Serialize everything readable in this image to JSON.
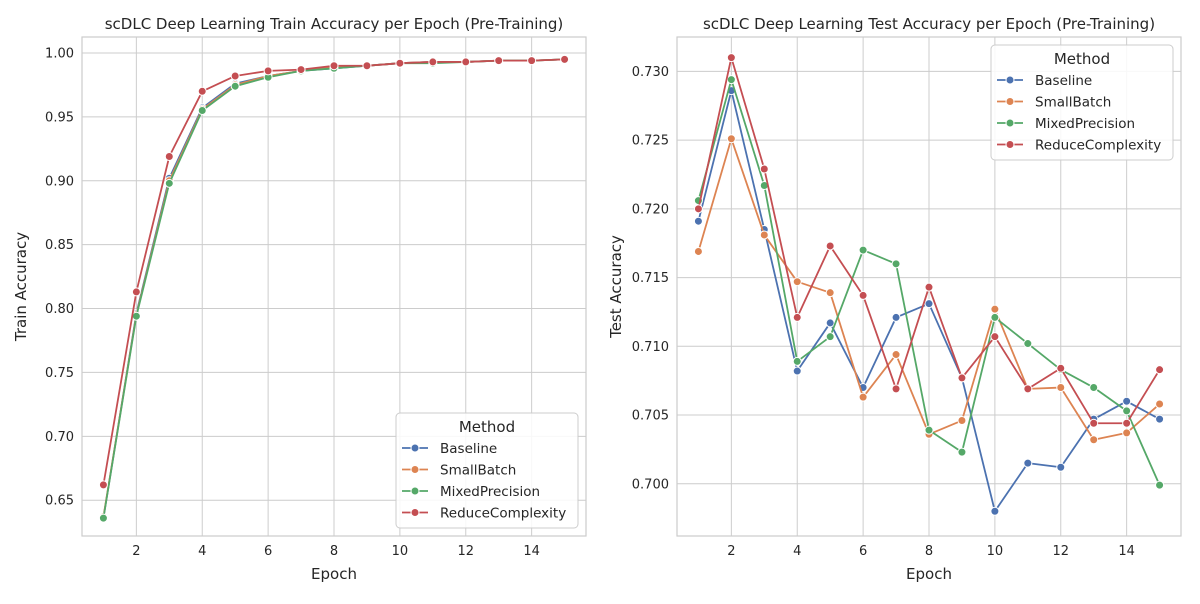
{
  "chart_data": [
    {
      "type": "line",
      "title": "scDLC Deep Learning Train Accuracy per Epoch (Pre-Training)",
      "xlabel": "Epoch",
      "ylabel": "Train Accuracy",
      "xlim": [
        0.35,
        15.65
      ],
      "ylim": [
        0.622,
        1.0125
      ],
      "xticks": [
        2,
        4,
        6,
        8,
        10,
        12,
        14
      ],
      "yticks": [
        0.65,
        0.7,
        0.75,
        0.8,
        0.85,
        0.9,
        0.95,
        1.0
      ],
      "ytick_decimals": 2,
      "grid": true,
      "legend": {
        "title": "Method",
        "position": "bottom-right"
      },
      "x": [
        1,
        2,
        3,
        4,
        5,
        6,
        7,
        8,
        9,
        10,
        11,
        12,
        13,
        14,
        15
      ],
      "series": [
        {
          "name": "Baseline",
          "color": "#4c72b0",
          "values": [
            0.636,
            0.796,
            0.902,
            0.957,
            0.976,
            0.982,
            0.986,
            0.988,
            0.99,
            0.992,
            0.993,
            0.993,
            0.994,
            0.994,
            0.995
          ]
        },
        {
          "name": "SmallBatch",
          "color": "#dd8452",
          "values": [
            0.637,
            0.795,
            0.9,
            0.956,
            0.975,
            0.982,
            0.986,
            0.989,
            0.99,
            0.992,
            0.993,
            0.993,
            0.994,
            0.994,
            0.995
          ]
        },
        {
          "name": "MixedPrecision",
          "color": "#55a868",
          "values": [
            0.636,
            0.794,
            0.898,
            0.955,
            0.974,
            0.981,
            0.986,
            0.988,
            0.99,
            0.992,
            0.992,
            0.993,
            0.994,
            0.994,
            0.995
          ]
        },
        {
          "name": "ReduceComplexity",
          "color": "#c44e52",
          "values": [
            0.662,
            0.813,
            0.919,
            0.97,
            0.982,
            0.986,
            0.987,
            0.99,
            0.99,
            0.992,
            0.993,
            0.993,
            0.994,
            0.994,
            0.995
          ]
        }
      ]
    },
    {
      "type": "line",
      "title": "scDLC Deep Learning Test Accuracy per Epoch (Pre-Training)",
      "xlabel": "Epoch",
      "ylabel": "Test Accuracy",
      "xlim": [
        0.35,
        15.65
      ],
      "ylim": [
        0.6962,
        0.7325
      ],
      "xticks": [
        2,
        4,
        6,
        8,
        10,
        12,
        14
      ],
      "yticks": [
        0.7,
        0.705,
        0.71,
        0.715,
        0.72,
        0.725,
        0.73
      ],
      "ytick_decimals": 3,
      "grid": true,
      "legend": {
        "title": "Method",
        "position": "top-right"
      },
      "x": [
        1,
        2,
        3,
        4,
        5,
        6,
        7,
        8,
        9,
        10,
        11,
        12,
        13,
        14,
        15
      ],
      "series": [
        {
          "name": "Baseline",
          "color": "#4c72b0",
          "values": [
            0.7191,
            0.7286,
            0.7185,
            0.7082,
            0.7117,
            0.707,
            0.7121,
            0.7131,
            0.7077,
            0.698,
            0.7015,
            0.7012,
            0.7047,
            0.706,
            0.7047
          ]
        },
        {
          "name": "SmallBatch",
          "color": "#dd8452",
          "values": [
            0.7169,
            0.7251,
            0.7181,
            0.7147,
            0.7139,
            0.7063,
            0.7094,
            0.7036,
            0.7046,
            0.7127,
            0.7069,
            0.707,
            0.7032,
            0.7037,
            0.7058
          ]
        },
        {
          "name": "MixedPrecision",
          "color": "#55a868",
          "values": [
            0.7206,
            0.7294,
            0.7217,
            0.7089,
            0.7107,
            0.717,
            0.716,
            0.7039,
            0.7023,
            0.7121,
            0.7102,
            0.7083,
            0.707,
            0.7053,
            0.6999
          ]
        },
        {
          "name": "ReduceComplexity",
          "color": "#c44e52",
          "values": [
            0.72,
            0.731,
            0.7229,
            0.7121,
            0.7173,
            0.7137,
            0.7069,
            0.7143,
            0.7077,
            0.7107,
            0.7069,
            0.7084,
            0.7044,
            0.7044,
            0.7083
          ]
        }
      ]
    }
  ]
}
